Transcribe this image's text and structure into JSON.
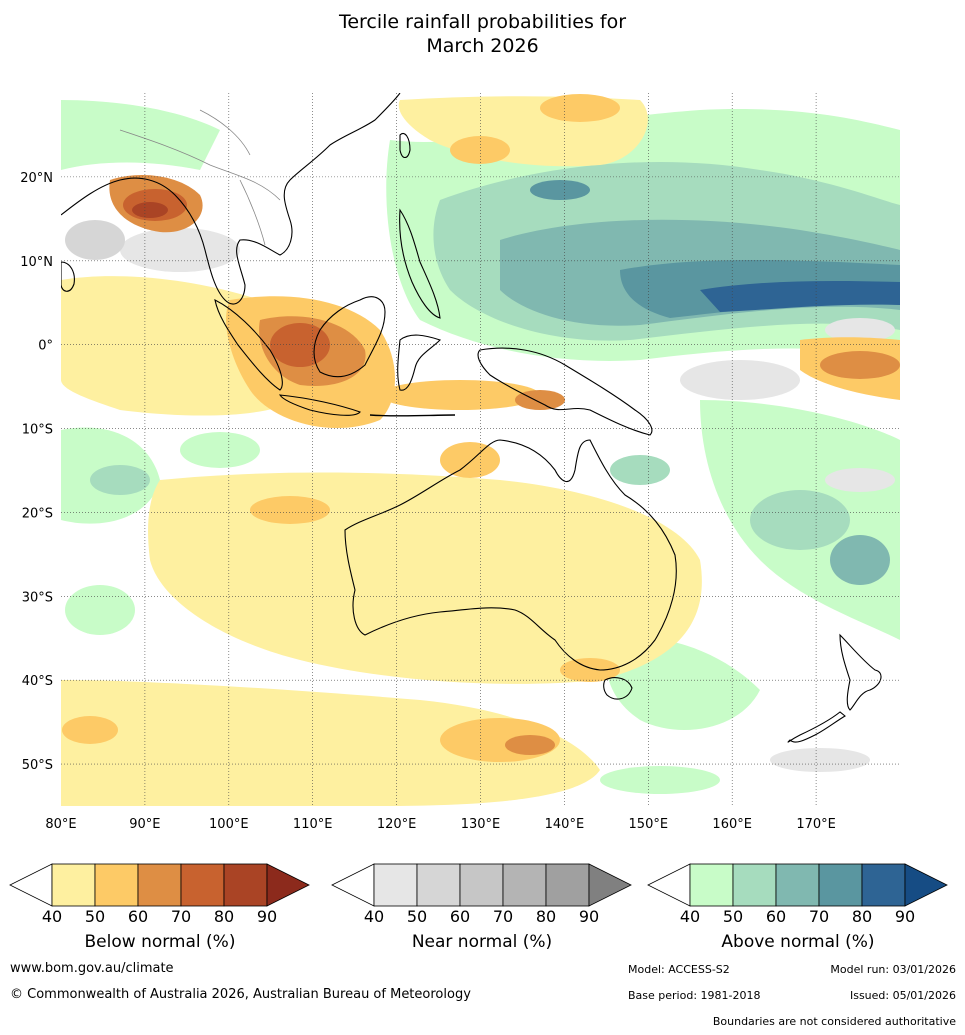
{
  "title_line1": "Tercile rainfall probabilities for",
  "title_line2": "March 2026",
  "map": {
    "lon_labels": [
      "80°E",
      "90°E",
      "100°E",
      "110°E",
      "120°E",
      "130°E",
      "140°E",
      "150°E",
      "160°E",
      "170°E"
    ],
    "lon_values": [
      80,
      90,
      100,
      110,
      120,
      130,
      140,
      150,
      160,
      170
    ],
    "lat_labels": [
      "20°N",
      "10°N",
      "0°",
      "10°S",
      "20°S",
      "30°S",
      "40°S",
      "50°S"
    ],
    "lat_values": [
      20,
      10,
      0,
      -10,
      -20,
      -30,
      -40,
      -50
    ],
    "lon_range": [
      80,
      180
    ],
    "lat_range": [
      -55,
      30
    ]
  },
  "colorbars": [
    {
      "label": "Below normal (%)",
      "ticks": [
        "40",
        "50",
        "60",
        "70",
        "80",
        "90"
      ],
      "colors": [
        "#fef0a0",
        "#fdca66",
        "#de8e44",
        "#c8622f",
        "#aa4425",
        "#8c2a1c"
      ]
    },
    {
      "label": "Near normal (%)",
      "ticks": [
        "40",
        "50",
        "60",
        "70",
        "80",
        "90"
      ],
      "colors": [
        "#e6e6e6",
        "#d6d6d6",
        "#c6c6c6",
        "#b4b4b4",
        "#a0a0a0",
        "#808080"
      ]
    },
    {
      "label": "Above normal (%)",
      "ticks": [
        "40",
        "50",
        "60",
        "70",
        "80",
        "90"
      ],
      "colors": [
        "#c8fcc8",
        "#a6dcbe",
        "#80b8b0",
        "#5a96a0",
        "#2e6494",
        "#164c84"
      ]
    }
  ],
  "footer": {
    "website": "www.bom.gov.au/climate",
    "copyright": "© Commonwealth of Australia 2026, Australian Bureau of Meteorology",
    "model": "Model: ACCESS-S2",
    "model_run": "Model run: 03/01/2026",
    "base_period": "Base period: 1981-2018",
    "issued": "Issued: 05/01/2026",
    "disclaimer": "Boundaries are not considered authoritative"
  }
}
